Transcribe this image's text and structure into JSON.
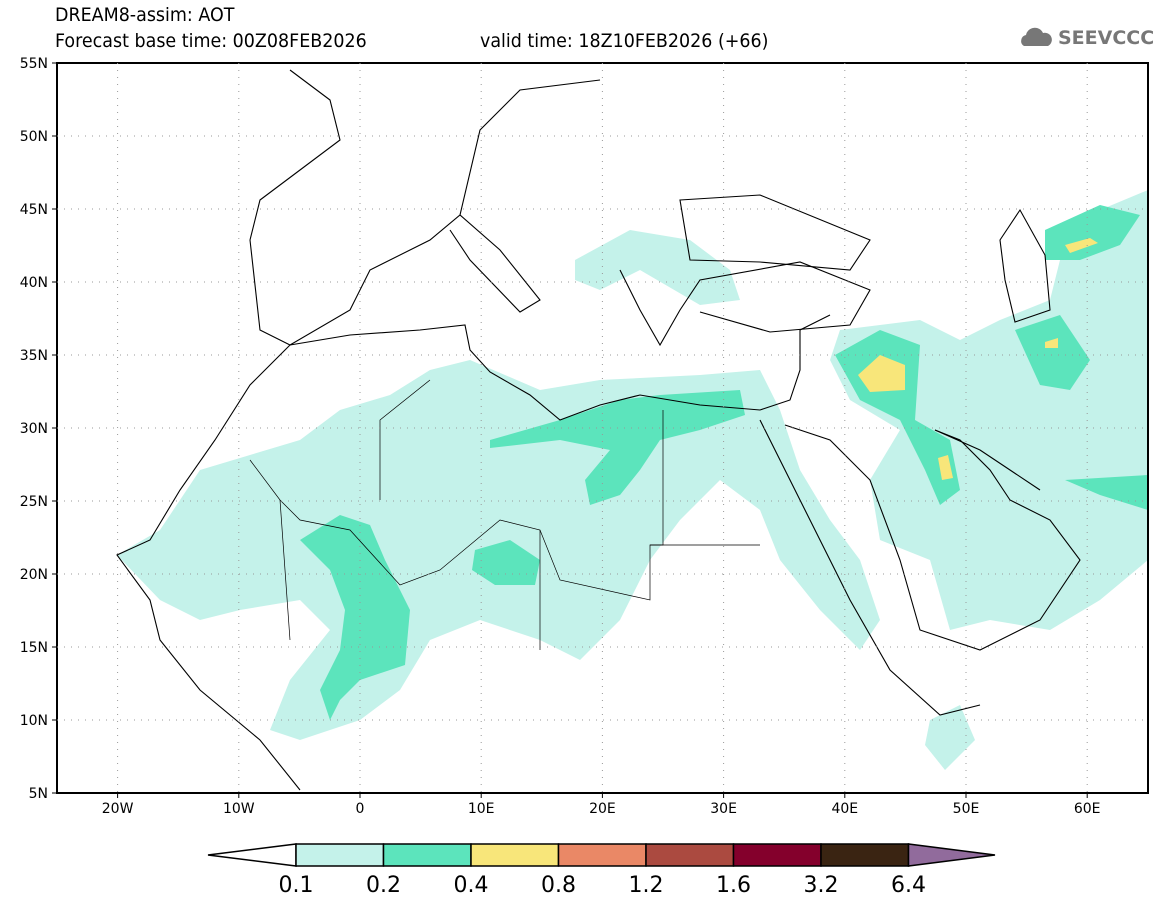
{
  "header": {
    "title": "DREAM8-assim: AOT",
    "base_time": "Forecast base time: 00Z08FEB2026",
    "valid_time": "valid time: 18Z10FEB2026 (+66)"
  },
  "logo": {
    "text": "SEEVCCC",
    "icon": "cloud-icon"
  },
  "map": {
    "lat_labels": [
      "55N",
      "50N",
      "45N",
      "40N",
      "35N",
      "30N",
      "25N",
      "20N",
      "15N",
      "10N",
      "5N"
    ],
    "lon_labels": [
      "20W",
      "10W",
      "0",
      "10E",
      "20E",
      "30E",
      "40E",
      "50E",
      "60E"
    ]
  },
  "colorbar": {
    "labels": [
      "0.1",
      "0.2",
      "0.4",
      "0.8",
      "1.2",
      "1.6",
      "3.2",
      "6.4"
    ],
    "colors": [
      "#ffffff",
      "#c4f2ea",
      "#5ce4bc",
      "#f8e67a",
      "#ea8866",
      "#ab4a40",
      "#84002c",
      "#3a2412",
      "#916b9c"
    ]
  }
}
